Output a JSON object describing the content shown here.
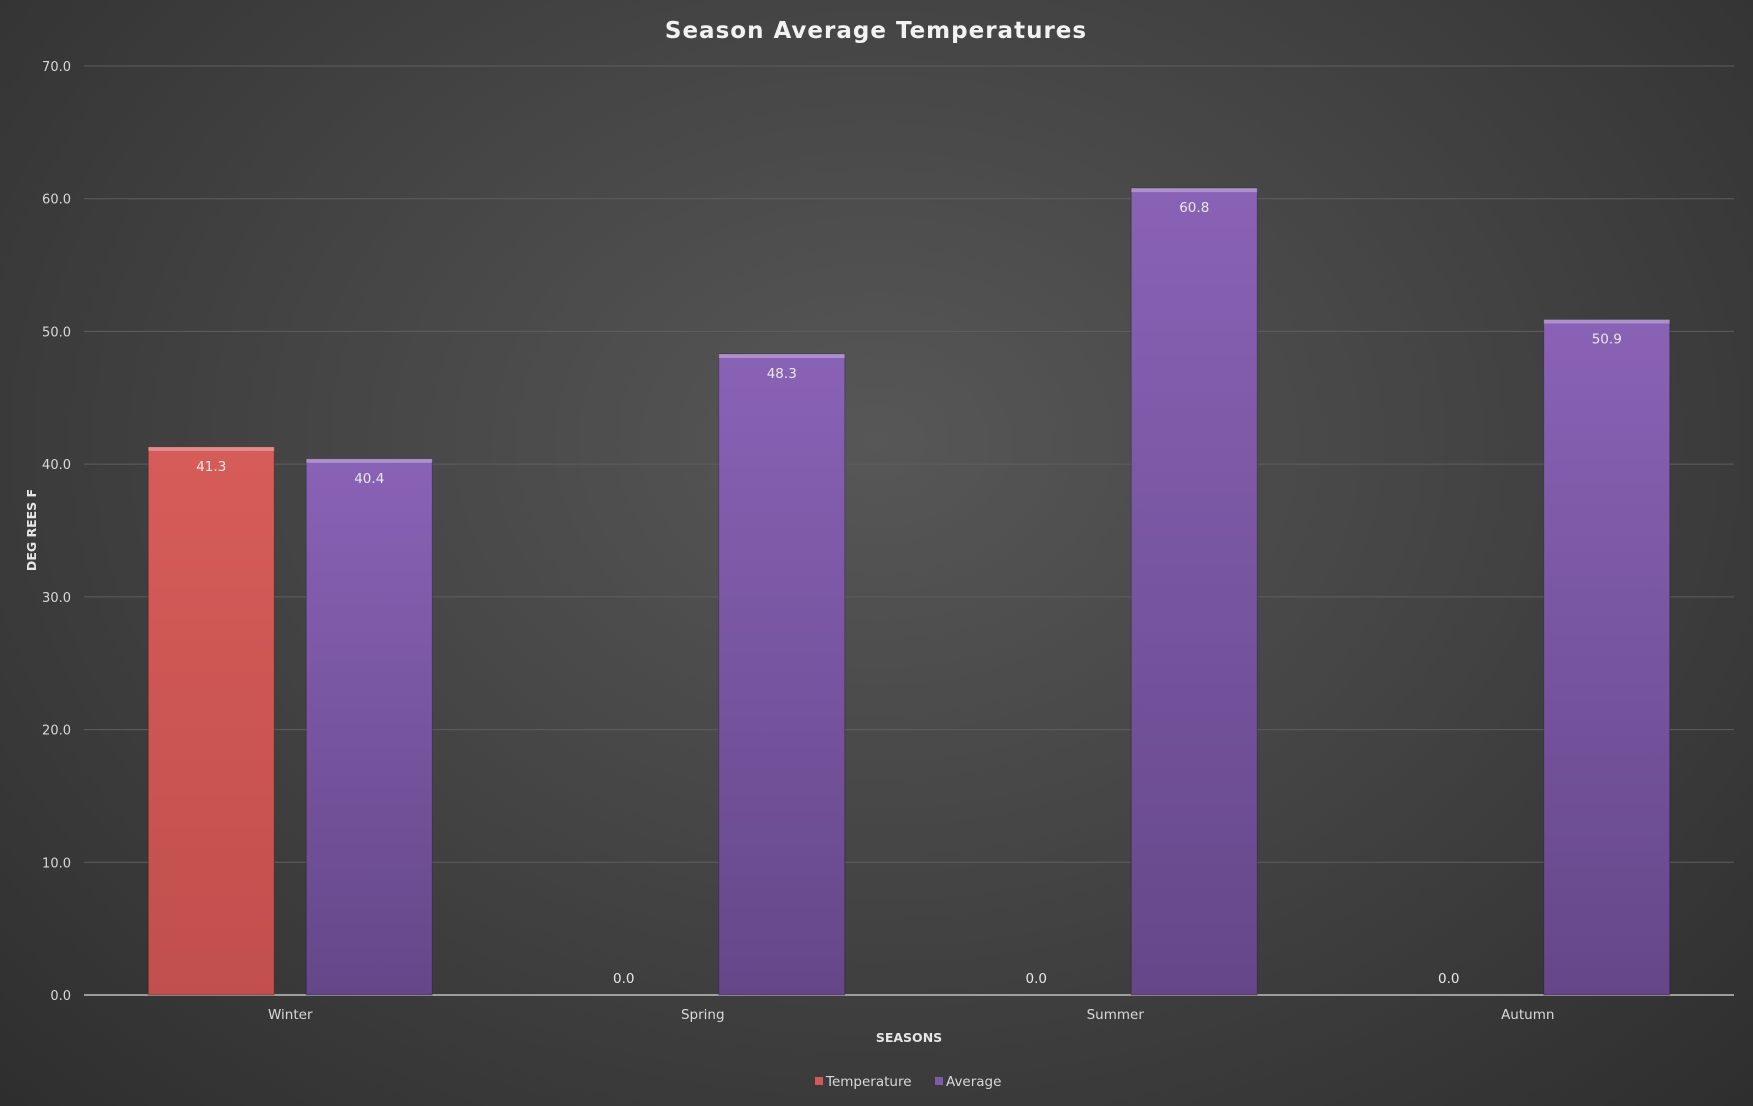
{
  "chart_data": {
    "type": "bar",
    "title": "Season Average Temperatures",
    "xlabel": "SEASONS",
    "ylabel": "DEG REES F",
    "categories": [
      "Winter",
      "Spring",
      "Summer",
      "Autumn"
    ],
    "series": [
      {
        "name": "Temperature",
        "values": [
          41.3,
          0.0,
          0.0,
          0.0
        ],
        "color": "#d05a57"
      },
      {
        "name": "Average",
        "values": [
          40.4,
          48.3,
          60.8,
          50.9
        ],
        "color": "#7f5aaa"
      }
    ],
    "ylim": [
      0,
      70
    ],
    "yticks": [
      "0.0",
      "10.0",
      "20.0",
      "30.0",
      "40.0",
      "50.0",
      "60.0",
      "70.0"
    ],
    "grid": true,
    "legend": "bottom",
    "data_labels": true
  }
}
